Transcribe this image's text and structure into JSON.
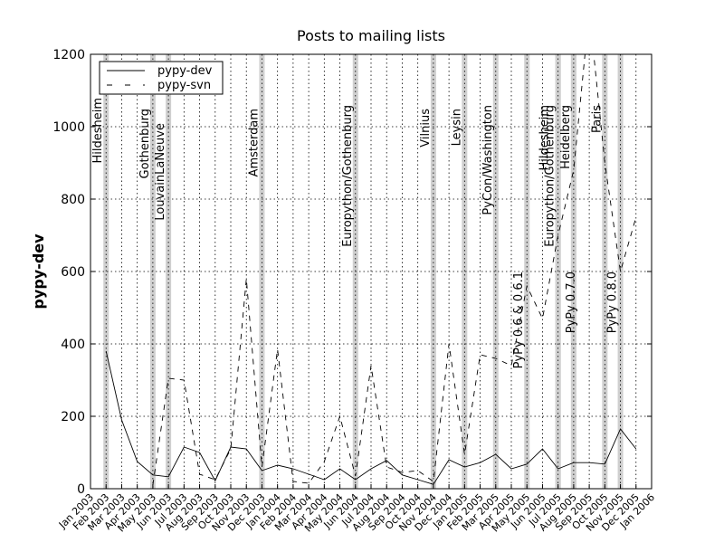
{
  "chart_data": {
    "type": "line",
    "title": "Posts to mailing lists",
    "ylabel": "pypy-dev",
    "xlabel": "",
    "ylim": [
      0,
      1200
    ],
    "yticks": [
      0,
      200,
      400,
      600,
      800,
      1000,
      1200
    ],
    "grid": true,
    "legend_position": "top-left",
    "months": [
      "Jan 2003",
      "Feb 2003",
      "Mar 2003",
      "Apr 2003",
      "May 2003",
      "Jun 2003",
      "Jul 2003",
      "Aug 2003",
      "Sep 2003",
      "Oct 2003",
      "Nov 2003",
      "Dec 2003",
      "Jan 2004",
      "Feb 2004",
      "Mar 2004",
      "Apr 2004",
      "May 2004",
      "Jun 2004",
      "Jul 2004",
      "Aug 2004",
      "Sep 2004",
      "Oct 2004",
      "Nov 2004",
      "Dec 2004",
      "Jan 2005",
      "Feb 2005",
      "Mar 2005",
      "Apr 2005",
      "May 2005",
      "Jun 2005",
      "Jul 2005",
      "Aug 2005",
      "Sep 2005",
      "Oct 2005",
      "Nov 2005",
      "Dec 2005",
      "Jan 2006"
    ],
    "xtick_labels": [
      "Jan 2003",
      "Feb 2003",
      "Mar 2003",
      "Apr 2003",
      "May 2003",
      "Jun 2003",
      "Jul 2003",
      "Aug 2003",
      "Sep 2003",
      "Oct 2003",
      "Nov 2003",
      "Dec 2003",
      "Jan 2004",
      "Feb 2004",
      "Mar 2004",
      "Apr 2004",
      "May 2004",
      "Jun 2004",
      "Jul 2004",
      "Aug 2004",
      "Sep 2004",
      "Oct 2004",
      "Nov 2004",
      "Dec 2004",
      "Jan 2005",
      "Feb 2005",
      "Mar 2005",
      "Apr 2005",
      "May 2005",
      "Jun 2005",
      "Jul 2005",
      "Aug 2005",
      "Sep 2005",
      "Oct 2005",
      "Nov 2005",
      "Dec 2005",
      "Jan 2006"
    ],
    "series": [
      {
        "name": "pypy-dev",
        "style": "solid",
        "color": "#000000",
        "points": [
          [
            "Feb 2003",
            380
          ],
          [
            "Mar 2003",
            190
          ],
          [
            "Apr 2003",
            75
          ],
          [
            "May 2003",
            38
          ],
          [
            "Jun 2003",
            33
          ],
          [
            "Jul 2003",
            115
          ],
          [
            "Aug 2003",
            100
          ],
          [
            "Sep 2003",
            22
          ],
          [
            "Oct 2003",
            115
          ],
          [
            "Nov 2003",
            110
          ],
          [
            "Dec 2003",
            50
          ],
          [
            "Jan 2004",
            65
          ],
          [
            "Feb 2004",
            55
          ],
          [
            "Mar 2004",
            40
          ],
          [
            "Apr 2004",
            25
          ],
          [
            "May 2004",
            55
          ],
          [
            "Jun 2004",
            25
          ],
          [
            "Jul 2004",
            55
          ],
          [
            "Aug 2004",
            78
          ],
          [
            "Sep 2004",
            38
          ],
          [
            "Oct 2004",
            25
          ],
          [
            "Nov 2004",
            12
          ],
          [
            "Dec 2004",
            80
          ],
          [
            "Jan 2005",
            60
          ],
          [
            "Feb 2005",
            72
          ],
          [
            "Mar 2005",
            95
          ],
          [
            "Apr 2005",
            55
          ],
          [
            "May 2005",
            68
          ],
          [
            "Jun 2005",
            110
          ],
          [
            "Jul 2005",
            55
          ],
          [
            "Aug 2005",
            72
          ],
          [
            "Sep 2005",
            72
          ],
          [
            "Oct 2005",
            68
          ],
          [
            "Nov 2005",
            165
          ],
          [
            "Dec 2005",
            110
          ]
        ]
      },
      {
        "name": "pypy-svn",
        "style": "dashed",
        "color": "#000000",
        "points": [
          [
            "May 2003",
            10
          ],
          [
            "Jun 2003",
            305
          ],
          [
            "Jul 2003",
            300
          ],
          [
            "Aug 2003",
            40
          ],
          [
            "Sep 2003",
            25
          ],
          [
            "Oct 2003",
            110
          ],
          [
            "Nov 2003",
            580
          ],
          [
            "Dec 2003",
            60
          ],
          [
            "Jan 2004",
            385
          ],
          [
            "Feb 2004",
            20
          ],
          [
            "Mar 2004",
            15
          ],
          [
            "Apr 2004",
            75
          ],
          [
            "May 2004",
            200
          ],
          [
            "Jun 2004",
            35
          ],
          [
            "Jul 2004",
            340
          ],
          [
            "Aug 2004",
            60
          ],
          [
            "Sep 2004",
            45
          ],
          [
            "Oct 2004",
            50
          ],
          [
            "Nov 2004",
            20
          ],
          [
            "Dec 2004",
            400
          ],
          [
            "Jan 2005",
            95
          ],
          [
            "Feb 2005",
            370
          ],
          [
            "Mar 2005",
            360
          ],
          [
            "Apr 2005",
            340
          ],
          [
            "May 2005",
            560
          ],
          [
            "Jun 2005",
            470
          ],
          [
            "Jul 2005",
            700
          ],
          [
            "Aug 2005",
            880
          ],
          [
            "Sep 2005",
            1320
          ],
          [
            "Oct 2005",
            900
          ],
          [
            "Nov 2005",
            600
          ],
          [
            "Dec 2005",
            750
          ]
        ]
      }
    ],
    "events": [
      {
        "label": "Hildesheim",
        "start": "Feb 2003",
        "end": "Feb 2003",
        "label_top": 1080
      },
      {
        "label": "Gothenburg",
        "start": "May 2003",
        "end": "May 2003",
        "label_top": 1050
      },
      {
        "label": "LouvainLaNeuve",
        "start": "Jun 2003",
        "end": "Jun 2003",
        "label_top": 1010
      },
      {
        "label": "Amsterdam",
        "start": "Dec 2003",
        "end": "Dec 2003",
        "label_top": 1050
      },
      {
        "label": "Europython/Gothenburg",
        "start": "Jun 2004",
        "end": "Jun 2004",
        "label_top": 1060
      },
      {
        "label": "Vilnius",
        "start": "Nov 2004",
        "end": "Nov 2004",
        "label_top": 1050
      },
      {
        "label": "Leysin",
        "start": "Jan 2005",
        "end": "Jan 2005",
        "label_top": 1050
      },
      {
        "label": "PyCon/Washington",
        "start": "Mar 2005",
        "end": "Mar 2005",
        "label_top": 1060
      },
      {
        "label": "PyPy 0.6 & 0.6.1",
        "start": "May 2005",
        "end": "May 2005",
        "label_top": 600
      },
      {
        "label": "Europython/Gothenburg",
        "start": "Jul 2005",
        "end": "Jul 2005",
        "label_top": 1060
      },
      {
        "label": "Hildesheim",
        "start": "Jul 2005",
        "end": "Jul 2005",
        "label_top": 1060
      },
      {
        "label": "Heidelberg",
        "start": "Aug 2005",
        "end": "Aug 2005",
        "label_top": 1060
      },
      {
        "label": "PyPy 0.7.0",
        "start": "Aug 2005",
        "end": "Aug 2005",
        "label_top": 600
      },
      {
        "label": "Paris",
        "start": "Oct 2005",
        "end": "Oct 2005",
        "label_top": 1060
      },
      {
        "label": "PyPy 0.8.0",
        "start": "Nov 2005",
        "end": "Nov 2005",
        "label_top": 600
      }
    ]
  }
}
